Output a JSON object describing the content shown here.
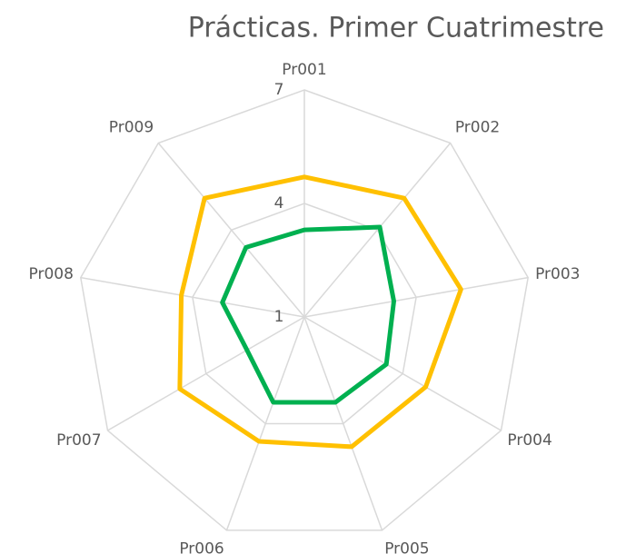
{
  "chart_data": {
    "type": "radar",
    "title": "Prácticas. Primer Cuatrimestre",
    "categories": [
      "Pr001",
      "Pr002",
      "Pr003",
      "Pr004",
      "Pr005",
      "Pr006",
      "Pr007",
      "Pr008",
      "Pr009"
    ],
    "series": [
      {
        "color": "#ffc000",
        "values": [
          4.7,
          5.1,
          5.2,
          4.7,
          4.65,
          4.5,
          4.8,
          4.3,
          5.1
        ]
      },
      {
        "color": "#00b050",
        "values": [
          3.3,
          4.1,
          3.4,
          3.5,
          3.4,
          3.4,
          2.75,
          3.2,
          3.4
        ]
      }
    ],
    "ylim": [
      1,
      7
    ],
    "yticks": [
      1,
      4,
      7
    ],
    "grid": true
  }
}
